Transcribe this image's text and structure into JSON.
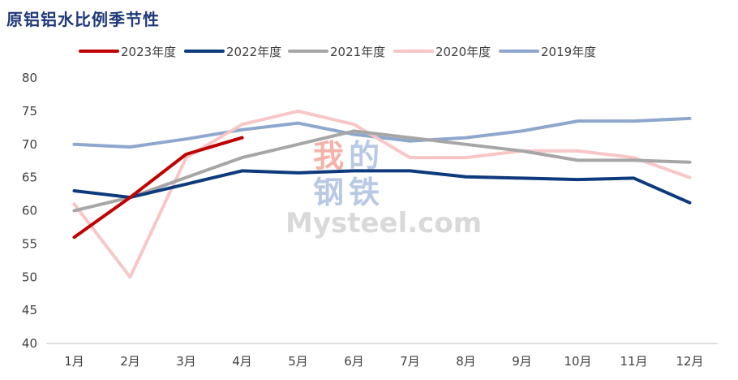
{
  "title": "原铝铝水比例季节性",
  "watermark": {
    "line1": [
      "我",
      "的"
    ],
    "line2": [
      "钢",
      "铁"
    ],
    "brand": "Mysteel.com"
  },
  "chart_data": {
    "type": "line",
    "title": "原铝铝水比例季节性",
    "xlabel": "",
    "ylabel": "",
    "categories": [
      "1月",
      "2月",
      "3月",
      "4月",
      "5月",
      "6月",
      "7月",
      "8月",
      "9月",
      "10月",
      "11月",
      "12月"
    ],
    "ylim": [
      40,
      80
    ],
    "yticks": [
      40,
      45,
      50,
      55,
      60,
      65,
      70,
      75,
      80
    ],
    "grid": false,
    "legend_position": "top",
    "series": [
      {
        "name": "2023年度",
        "color": "#c00000",
        "values": [
          56,
          62,
          68.5,
          71,
          null,
          null,
          null,
          null,
          null,
          null,
          null,
          null
        ]
      },
      {
        "name": "2022年度",
        "color": "#0d3a7c",
        "values": [
          63,
          62,
          64,
          66,
          65.7,
          66,
          66,
          65.1,
          64.9,
          64.7,
          64.9,
          61.2
        ]
      },
      {
        "name": "2021年度",
        "color": "#a6a6a6",
        "values": [
          60,
          62,
          65,
          68,
          70,
          72,
          71,
          70,
          69,
          67.6,
          67.6,
          67.3
        ]
      },
      {
        "name": "2020年度",
        "color": "#f8c6c6",
        "values": [
          61,
          50,
          68,
          73,
          75,
          73,
          68,
          68,
          69,
          69,
          68,
          65
        ]
      },
      {
        "name": "2019年度",
        "color": "#8ea7cd",
        "values": [
          70,
          69.6,
          70.8,
          72.2,
          73.2,
          71.5,
          70.5,
          71,
          72,
          73.5,
          73.5,
          73.9
        ]
      }
    ]
  }
}
